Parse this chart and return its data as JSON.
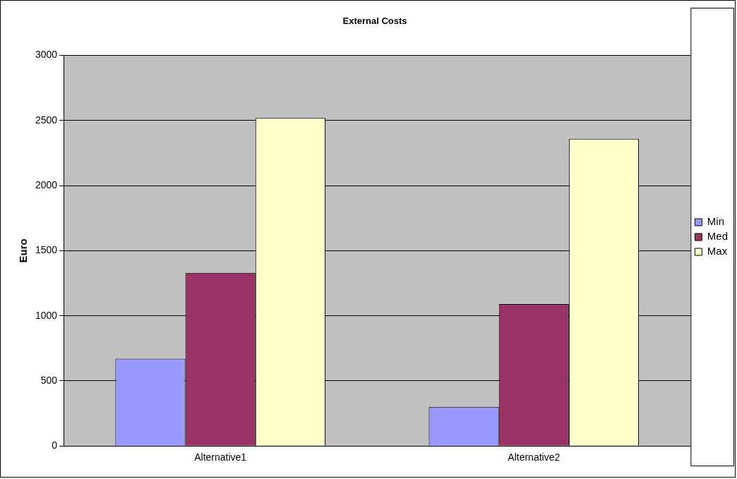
{
  "chart_data": {
    "type": "bar",
    "title": "External Costs",
    "ylabel": "Euro",
    "categories": [
      "Alternative1",
      "Alternative2"
    ],
    "series": [
      {
        "name": "Min",
        "color": "#9999ff",
        "values": [
          670,
          300
        ]
      },
      {
        "name": "Med",
        "color": "#993366",
        "values": [
          1330,
          1090
        ]
      },
      {
        "name": "Max",
        "color": "#ffffcc",
        "values": [
          2520,
          2360
        ]
      }
    ],
    "ylim": [
      0,
      3000
    ],
    "yticks": [
      0,
      500,
      1000,
      1500,
      2000,
      2500,
      3000
    ],
    "grid": "y",
    "legend": "right"
  }
}
